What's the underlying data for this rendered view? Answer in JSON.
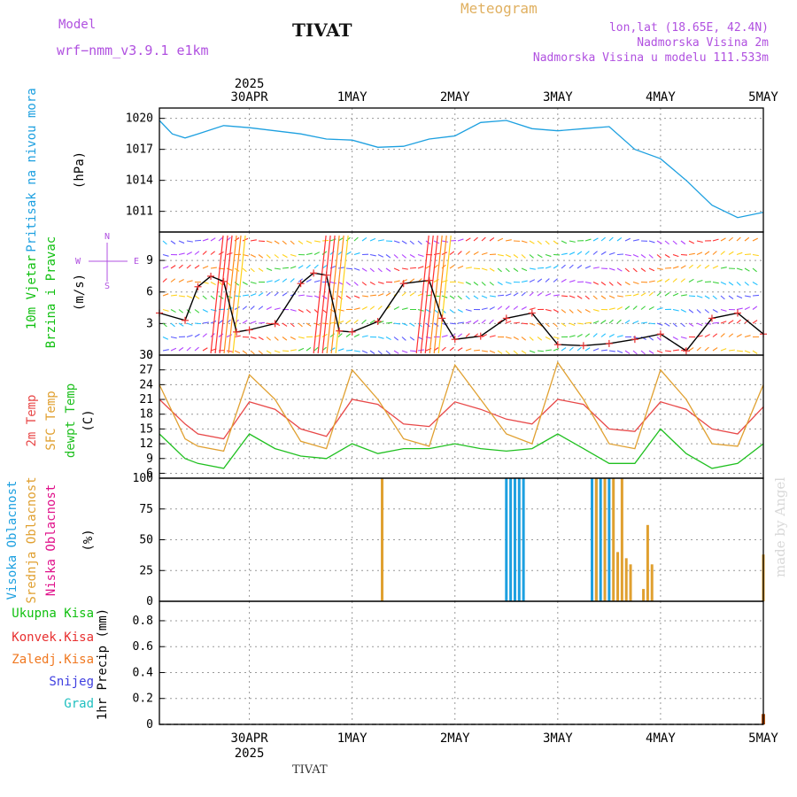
{
  "header": {
    "model_label": "Model",
    "model_name": "wrf−nmm_v3.9.1  e1km",
    "station": "TIVAT",
    "meteogram": "Meteogram",
    "lonlat": "lon,lat (18.65E, 42.4N)",
    "elevation": "Nadmorska Visina 2m",
    "model_elevation": "Nadmorska Visina u modelu 111.533m",
    "footer_station": "TIVAT",
    "watermark": "made by Angel"
  },
  "colors": {
    "pressure": "#1da0e0",
    "wind_label": "#10c010",
    "temp2m": "#e84848",
    "sfc": "#e0a030",
    "dew": "#20c020",
    "high_cloud": "#1da0e0",
    "mid_cloud": "#e0a030",
    "low_cloud": "#e0108a",
    "precip_total": "#10c010",
    "precip_conv": "#e83030",
    "precip_frz": "#f07820",
    "snow": "#4040e0",
    "hail": "#20c0c0",
    "wind_obs": "#e83030",
    "compass": "#b050e0"
  },
  "chart_data": {
    "type": "line",
    "x_axis": {
      "year": "2025",
      "days": [
        "30APR",
        "1MAY",
        "2MAY",
        "3MAY",
        "4MAY",
        "5MAY"
      ],
      "start": "2025-04-29T15:00",
      "end": "2025-05-05T12:00"
    },
    "panels": [
      {
        "id": "pressure",
        "ylabel_lines": [
          "Pritisak na nivou mora",
          "(hPa)"
        ],
        "yticks": [
          1011,
          1014,
          1017,
          1020
        ],
        "ylim": [
          1009,
          1021
        ],
        "series": [
          {
            "name": "Pritisak na nivou mora",
            "x": [
              "2025-04-29T15:00",
              "2025-04-29T18:00",
              "2025-04-29T21:00",
              "2025-04-30T00:00",
              "2025-04-30T06:00",
              "2025-04-30T12:00",
              "2025-04-30T18:00",
              "2025-05-01T00:00",
              "2025-05-01T06:00",
              "2025-05-01T12:00",
              "2025-05-01T18:00",
              "2025-05-02T00:00",
              "2025-05-02T06:00",
              "2025-05-02T12:00",
              "2025-05-02T18:00",
              "2025-05-03T00:00",
              "2025-05-03T06:00",
              "2025-05-03T12:00",
              "2025-05-03T18:00",
              "2025-05-04T00:00",
              "2025-05-04T06:00",
              "2025-05-04T12:00",
              "2025-05-04T18:00",
              "2025-05-05T00:00",
              "2025-05-05T06:00",
              "2025-05-05T12:00"
            ],
            "y": [
              1019.8,
              1018.5,
              1018.1,
              1018.5,
              1019.3,
              1019.1,
              1018.8,
              1018.5,
              1018.0,
              1017.9,
              1017.2,
              1017.3,
              1018.0,
              1018.3,
              1019.6,
              1019.8,
              1019.0,
              1018.8,
              1019.0,
              1019.2,
              1017.0,
              1016.1,
              1014.0,
              1011.6,
              1010.4,
              1010.9
            ]
          }
        ]
      },
      {
        "id": "wind",
        "ylabel_lines": [
          "10m Vjetar",
          "Brzina i Pravac",
          "(m/s)"
        ],
        "compass": [
          "N",
          "W",
          "E",
          "S"
        ],
        "yticks": [
          0,
          3,
          6,
          9
        ],
        "ylim": [
          0,
          11.7
        ],
        "series": [
          {
            "name": "10m Vjetar",
            "x": [
              "2025-04-29T15:00",
              "2025-04-29T21:00",
              "2025-04-30T00:00",
              "2025-04-30T03:00",
              "2025-04-30T06:00",
              "2025-04-30T09:00",
              "2025-04-30T12:00",
              "2025-04-30T18:00",
              "2025-05-01T00:00",
              "2025-05-01T03:00",
              "2025-05-01T06:00",
              "2025-05-01T09:00",
              "2025-05-01T12:00",
              "2025-05-01T18:00",
              "2025-05-02T00:00",
              "2025-05-02T06:00",
              "2025-05-02T09:00",
              "2025-05-02T12:00",
              "2025-05-02T18:00",
              "2025-05-03T00:00",
              "2025-05-03T06:00",
              "2025-05-03T12:00",
              "2025-05-03T18:00",
              "2025-05-04T00:00",
              "2025-05-04T06:00",
              "2025-05-04T12:00",
              "2025-05-04T18:00",
              "2025-05-05T00:00",
              "2025-05-05T06:00",
              "2025-05-05T12:00"
            ],
            "y": [
              4.0,
              3.3,
              6.5,
              7.5,
              7.0,
              2.2,
              2.4,
              3.0,
              6.8,
              7.8,
              7.6,
              2.3,
              2.2,
              3.2,
              6.8,
              7.1,
              3.5,
              1.5,
              1.8,
              3.5,
              4.0,
              1.0,
              0.9,
              1.1,
              1.5,
              2.0,
              0.4,
              3.5,
              4.0,
              2.0
            ]
          }
        ]
      },
      {
        "id": "temperature",
        "ylabel_lines": [
          "2m Temp",
          "SFC Temp",
          "dewpt Temp",
          "(C)"
        ],
        "yticks": [
          6,
          9,
          12,
          15,
          18,
          21,
          24,
          27,
          30
        ],
        "ylim": [
          5,
          30
        ],
        "series": [
          {
            "name": "2m Temp",
            "x": [
              "2025-04-29T15:00",
              "2025-04-29T21:00",
              "2025-04-30T00:00",
              "2025-04-30T06:00",
              "2025-04-30T12:00",
              "2025-04-30T18:00",
              "2025-05-01T00:00",
              "2025-05-01T06:00",
              "2025-05-01T12:00",
              "2025-05-01T18:00",
              "2025-05-02T00:00",
              "2025-05-02T06:00",
              "2025-05-02T12:00",
              "2025-05-02T18:00",
              "2025-05-03T00:00",
              "2025-05-03T06:00",
              "2025-05-03T12:00",
              "2025-05-03T18:00",
              "2025-05-04T00:00",
              "2025-05-04T06:00",
              "2025-05-04T12:00",
              "2025-05-04T18:00",
              "2025-05-05T00:00",
              "2025-05-05T06:00",
              "2025-05-05T12:00"
            ],
            "y": [
              21,
              16,
              14,
              13,
              20.5,
              19,
              15,
              13.5,
              21,
              20,
              16,
              15.5,
              20.5,
              19,
              17,
              16,
              21,
              20,
              15,
              14.5,
              20.5,
              19,
              15,
              14,
              19.5
            ]
          },
          {
            "name": "SFC Temp",
            "x": [
              "2025-04-29T15:00",
              "2025-04-29T21:00",
              "2025-04-30T00:00",
              "2025-04-30T06:00",
              "2025-04-30T12:00",
              "2025-04-30T18:00",
              "2025-05-01T00:00",
              "2025-05-01T06:00",
              "2025-05-01T12:00",
              "2025-05-01T18:00",
              "2025-05-02T00:00",
              "2025-05-02T06:00",
              "2025-05-02T12:00",
              "2025-05-02T18:00",
              "2025-05-03T00:00",
              "2025-05-03T06:00",
              "2025-05-03T12:00",
              "2025-05-03T18:00",
              "2025-05-04T00:00",
              "2025-05-04T06:00",
              "2025-05-04T12:00",
              "2025-05-04T18:00",
              "2025-05-05T00:00",
              "2025-05-05T06:00",
              "2025-05-05T12:00"
            ],
            "y": [
              24,
              13,
              11.5,
              10.5,
              26,
              21,
              12.5,
              11,
              27,
              21,
              13,
              11.5,
              28,
              21,
              14,
              12,
              28.5,
              21,
              12,
              11,
              27,
              21,
              12,
              11.5,
              24
            ]
          },
          {
            "name": "dewpt Temp",
            "x": [
              "2025-04-29T15:00",
              "2025-04-29T21:00",
              "2025-04-30T00:00",
              "2025-04-30T06:00",
              "2025-04-30T12:00",
              "2025-04-30T18:00",
              "2025-05-01T00:00",
              "2025-05-01T06:00",
              "2025-05-01T12:00",
              "2025-05-01T18:00",
              "2025-05-02T00:00",
              "2025-05-02T06:00",
              "2025-05-02T12:00",
              "2025-05-02T18:00",
              "2025-05-03T00:00",
              "2025-05-03T06:00",
              "2025-05-03T12:00",
              "2025-05-03T18:00",
              "2025-05-04T00:00",
              "2025-05-04T06:00",
              "2025-05-04T12:00",
              "2025-05-04T18:00",
              "2025-05-05T00:00",
              "2025-05-05T06:00",
              "2025-05-05T12:00"
            ],
            "y": [
              14,
              9,
              8,
              7,
              14,
              11,
              9.5,
              9,
              12,
              10,
              11,
              11,
              12,
              11,
              10.5,
              11,
              14,
              11,
              8,
              8,
              15,
              10,
              7,
              8,
              12
            ]
          }
        ]
      },
      {
        "id": "cloud",
        "ylabel_lines": [
          "Visoka Oblacnost",
          "Srednja Oblacnost",
          "Niska Oblacnost",
          "(%)"
        ],
        "yticks": [
          0,
          25,
          50,
          75,
          100
        ],
        "ylim": [
          0,
          100
        ],
        "bars": [
          {
            "name": "Visoka Oblacnost",
            "x": [
              "2025-05-03T00:00",
              "2025-05-03T01:00",
              "2025-05-03T02:00",
              "2025-05-03T03:00",
              "2025-05-03T04:00",
              "2025-05-03T20:00",
              "2025-05-03T21:00",
              "2025-05-03T22:00",
              "2025-05-03T23:00",
              "2025-05-04T00:00"
            ],
            "y": [
              100,
              100,
              100,
              100,
              100,
              100,
              100,
              100,
              100,
              100
            ]
          },
          {
            "name": "Srednja Oblacnost",
            "x": [
              "2025-05-01T19:00",
              "2025-05-03T21:00",
              "2025-05-03T23:00",
              "2025-05-04T01:00",
              "2025-05-04T02:00",
              "2025-05-04T03:00",
              "2025-05-04T04:00",
              "2025-05-04T05:00",
              "2025-05-04T08:00",
              "2025-05-04T09:00",
              "2025-05-04T10:00",
              "2025-05-05T12:00"
            ],
            "y": [
              100,
              100,
              100,
              100,
              40,
              100,
              35,
              30,
              10,
              62,
              30,
              38
            ]
          },
          {
            "name": "Niska Oblacnost",
            "x": [],
            "y": []
          }
        ]
      },
      {
        "id": "precip",
        "ylabel_lines": [
          "1hr Precip (mm)"
        ],
        "legend": [
          "Ukupna Kisa",
          "Konvek.Kisa",
          "Zaledj.Kisa",
          "Snijeg",
          "Grad"
        ],
        "yticks": [
          0,
          0.2,
          0.4,
          0.6,
          0.8
        ],
        "ytick_labels": [
          "0",
          "0.2",
          "0.4",
          "0.6",
          "0.8"
        ],
        "ylim": [
          0,
          0.95
        ],
        "bars": [
          {
            "name": "Ukupna Kisa",
            "x": [
              "2025-05-05T12:00"
            ],
            "y": [
              0.08
            ]
          }
        ]
      }
    ],
    "annotation": "made by Angel"
  }
}
